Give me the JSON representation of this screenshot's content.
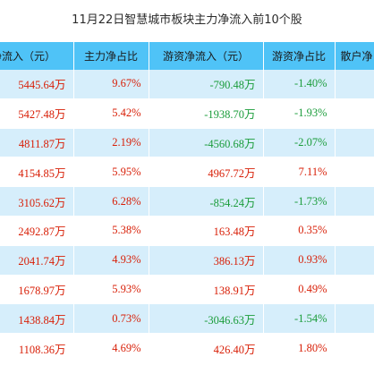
{
  "title": "11月22日智慧城市板块主力净流入前10个股",
  "headers": [
    "净流入（元）",
    "主力净占比",
    "游资净流入（元）",
    "游资净占比",
    "散户净"
  ],
  "rows": [
    [
      "5445.64万",
      "9.67%",
      "-790.48万",
      "-1.40%",
      ""
    ],
    [
      "5427.48万",
      "5.42%",
      "-1938.70万",
      "-1.93%",
      ""
    ],
    [
      "4811.87万",
      "2.19%",
      "-4560.68万",
      "-2.07%",
      ""
    ],
    [
      "4154.85万",
      "5.95%",
      "4967.72万",
      "7.11%",
      ""
    ],
    [
      "3105.62万",
      "6.28%",
      "-854.24万",
      "-1.73%",
      ""
    ],
    [
      "2492.87万",
      "5.38%",
      "163.48万",
      "0.35%",
      ""
    ],
    [
      "2041.74万",
      "4.93%",
      "386.13万",
      "0.93%",
      ""
    ],
    [
      "1678.97万",
      "5.93%",
      "138.91万",
      "0.49%",
      ""
    ],
    [
      "1438.84万",
      "0.73%",
      "-3046.63万",
      "-1.54%",
      ""
    ],
    [
      "1108.36万",
      "4.69%",
      "426.40万",
      "1.80%",
      ""
    ]
  ],
  "colors": {
    "header_bg": "#4fc3f7",
    "stripe_bg": "#d6eefb",
    "positive": "#d81e06",
    "negative": "#1a9c3a"
  }
}
